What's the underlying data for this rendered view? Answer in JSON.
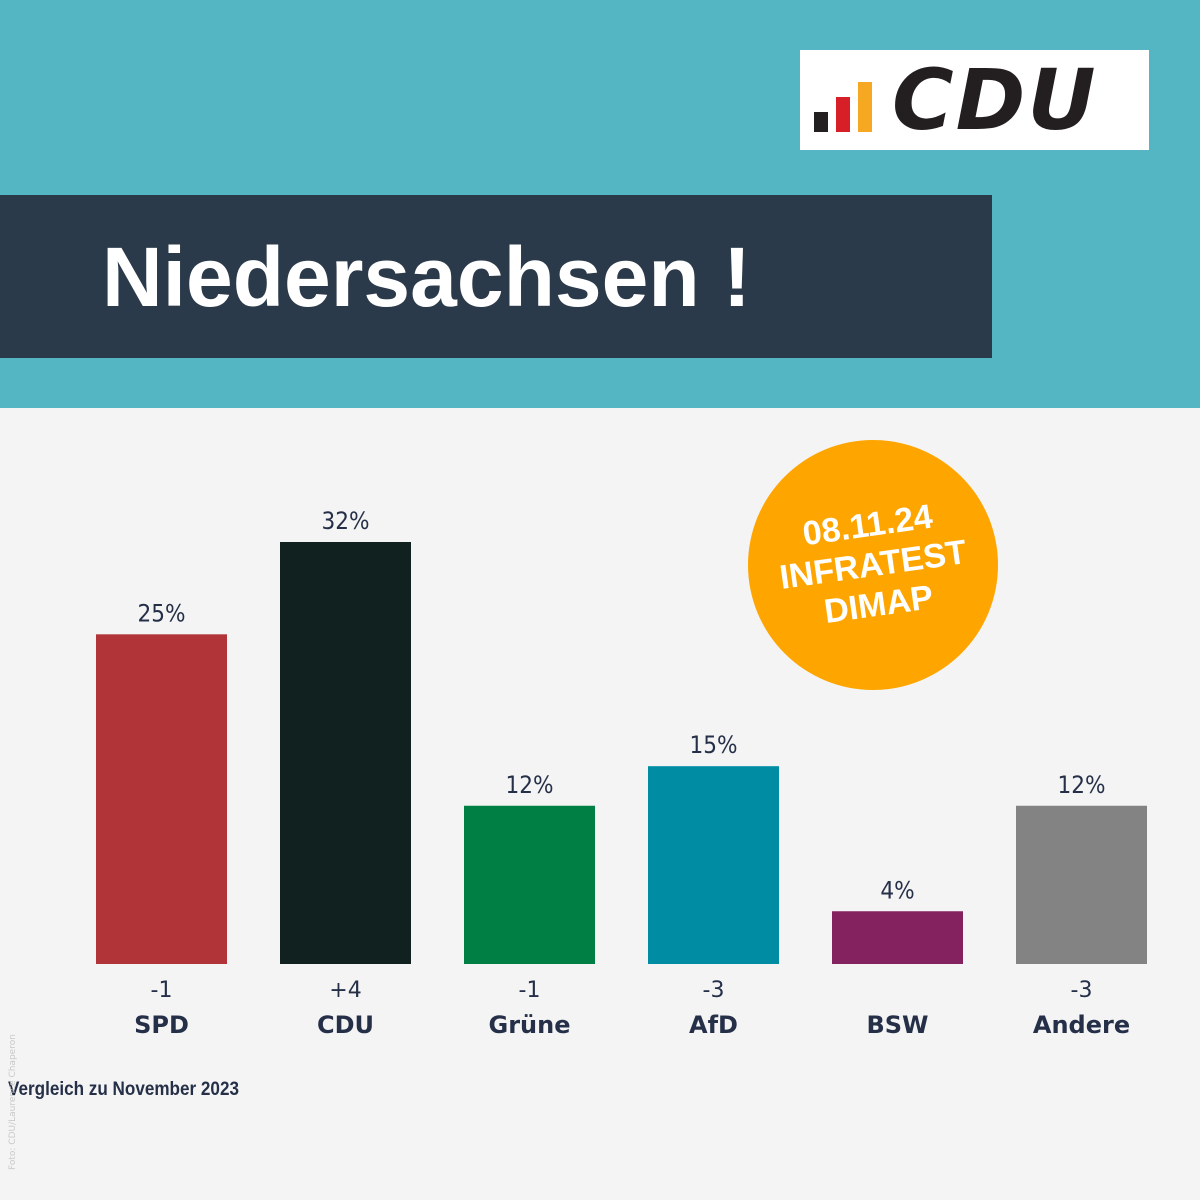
{
  "header": {
    "logo_text": "CDU",
    "logo_bar_colors": [
      "#231f20",
      "#d71f27",
      "#f7a823"
    ],
    "title": "Niedersachsen !"
  },
  "badge": {
    "line1": "08.11.24",
    "line2": "INFRATEST",
    "line3": "DIMAP",
    "color": "#ffa500"
  },
  "chart_data": {
    "type": "bar",
    "title": "",
    "xlabel": "",
    "ylabel": "",
    "ylim": [
      0,
      32
    ],
    "grid": false,
    "categories": [
      "SPD",
      "CDU",
      "Grüne",
      "AfD",
      "BSW",
      "Andere"
    ],
    "values": [
      25,
      32,
      12,
      15,
      4,
      12
    ],
    "value_labels": [
      "25%",
      "32%",
      "12%",
      "15%",
      "4%",
      "12%"
    ],
    "change_labels": [
      "-1",
      "+4",
      "-1",
      "-3",
      "",
      "-3"
    ],
    "colors": [
      "#b03438",
      "#102120",
      "#007f45",
      "#008da4",
      "#84215f",
      "#838383"
    ]
  },
  "footnote": "Vergleich zu November 2023",
  "credit": "Foto: CDU/Laurence Chaperon"
}
